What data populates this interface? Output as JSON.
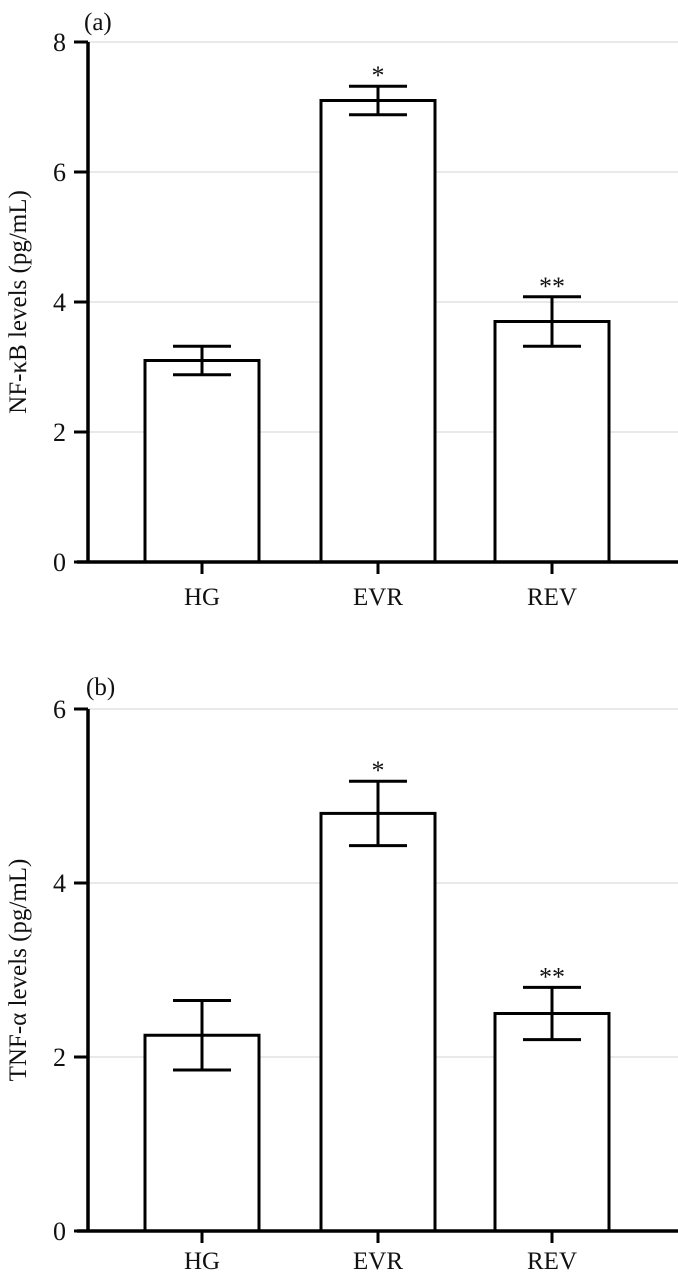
{
  "figure": {
    "background": "#ffffff",
    "line_color": "#000000",
    "gridline_color": "#e9e9e9",
    "bar_fill": "#ffffff",
    "text_color": "#111111"
  },
  "chart_data": [
    {
      "type": "bar",
      "panel_label": "(a)",
      "title": "",
      "xlabel": "",
      "ylabel": "NF-κB levels (pg/mL)",
      "categories": [
        "HG",
        "EVR",
        "REV"
      ],
      "values": [
        3.1,
        7.1,
        3.7
      ],
      "errors": [
        0.22,
        0.22,
        0.38
      ],
      "annotations": [
        "",
        "*",
        "**"
      ],
      "ylim": [
        0,
        8
      ],
      "yticks": [
        0,
        2,
        4,
        6,
        8
      ],
      "grid": "horizontal",
      "legend": "none",
      "bar_style": "white fill, black outline, black error bars with caps"
    },
    {
      "type": "bar",
      "panel_label": "(b)",
      "title": "",
      "xlabel": "",
      "ylabel": "TNF-α levels (pg/mL)",
      "categories": [
        "HG",
        "EVR",
        "REV"
      ],
      "values": [
        2.25,
        4.8,
        2.5
      ],
      "errors": [
        0.4,
        0.37,
        0.3
      ],
      "annotations": [
        "",
        "*",
        "**"
      ],
      "ylim": [
        0,
        6
      ],
      "yticks": [
        0,
        2,
        4,
        6
      ],
      "grid": "horizontal",
      "legend": "none",
      "bar_style": "white fill, black outline, black error bars with caps"
    }
  ]
}
